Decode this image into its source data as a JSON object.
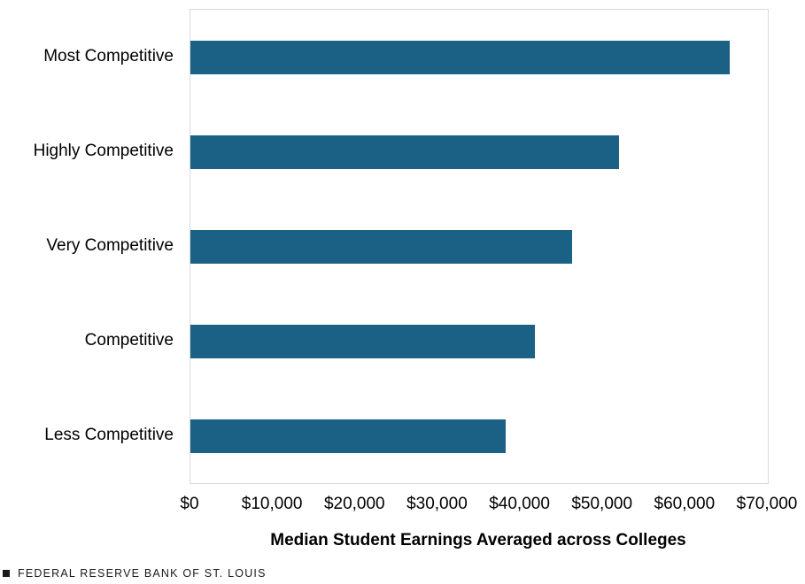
{
  "chart_data": {
    "type": "bar",
    "orientation": "horizontal",
    "title": "",
    "categories": [
      "Most Competitive",
      "Highly Competitive",
      "Very Competitive",
      "Competitive",
      "Less Competitive"
    ],
    "values": [
      65400,
      52000,
      46300,
      41800,
      38200
    ],
    "xlabel": "Median Student Earnings Averaged across Colleges",
    "ylabel": "",
    "xlim": [
      0,
      70000
    ],
    "xticks": {
      "values": [
        0,
        10000,
        20000,
        30000,
        40000,
        50000,
        60000,
        70000
      ],
      "labels": [
        "$0",
        "$10,000",
        "$20,000",
        "$30,000",
        "$40,000",
        "$50,000",
        "$60,000",
        "$70,000"
      ]
    },
    "grid": false,
    "legend": false,
    "bar_color": "#1A6185",
    "plot_border_color": "#D9D9D9"
  },
  "footer": {
    "source": "FEDERAL RESERVE BANK OF ST. LOUIS"
  }
}
